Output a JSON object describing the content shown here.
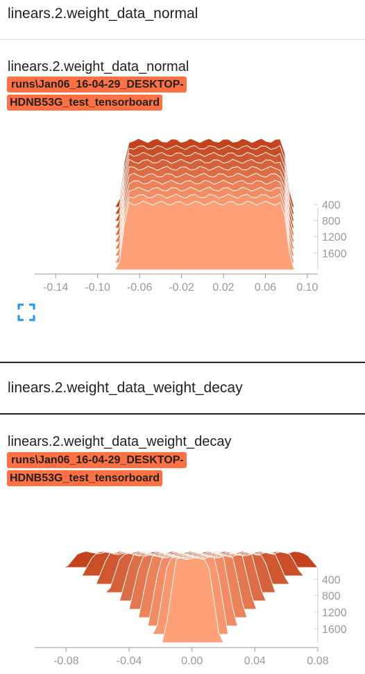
{
  "sections": [
    {
      "header": "linears.2.weight_data_normal",
      "card_title": "linears.2.weight_data_normal",
      "run_label_line1": "runs\\Jan06_16-04-29_DESKTOP-",
      "run_label_line2": "HDNB53G_test_tensorboard",
      "fullscreen_icon": "fullscreen-icon"
    },
    {
      "header": "linears.2.weight_data_weight_decay",
      "card_title": "linears.2.weight_data_weight_decay",
      "run_label_line1": "runs\\Jan06_16-04-29_DESKTOP-",
      "run_label_line2": "HDNB53G_test_tensorboard"
    }
  ],
  "colors": {
    "run_tag": "#ff7043",
    "oldest_step": "#ffa178",
    "newest_step": "#c2431c",
    "axis": "#999999"
  },
  "chart_data": [
    {
      "type": "area",
      "subtype": "offset-histogram",
      "x_tick_labels": [
        "-0.14",
        "-0.10",
        "-0.06",
        "-0.02",
        "0.02",
        "0.06",
        "0.10"
      ],
      "x_ticks": [
        -0.14,
        -0.1,
        -0.06,
        -0.02,
        0.02,
        0.06,
        0.1
      ],
      "xlim": [
        -0.16,
        0.11
      ],
      "step_tick_labels": [
        "400",
        "800",
        "1200",
        "1600"
      ],
      "steps": [
        400,
        800,
        1200,
        1600
      ],
      "series_count": 10,
      "distribution": "uniform",
      "range_per_step": [
        [
          -0.072,
          0.077
        ],
        [
          -0.072,
          0.077
        ],
        [
          -0.072,
          0.077
        ],
        [
          -0.072,
          0.077
        ],
        [
          -0.072,
          0.077
        ],
        [
          -0.072,
          0.077
        ],
        [
          -0.072,
          0.077
        ],
        [
          -0.072,
          0.077
        ],
        [
          -0.072,
          0.077
        ],
        [
          -0.072,
          0.077
        ]
      ]
    },
    {
      "type": "area",
      "subtype": "offset-histogram",
      "x_tick_labels": [
        "-0.08",
        "-0.04",
        "0.00",
        "0.04",
        "0.08"
      ],
      "x_ticks": [
        -0.08,
        -0.04,
        0.0,
        0.04,
        0.08
      ],
      "xlim": [
        -0.1,
        0.08
      ],
      "step_tick_labels": [
        "400",
        "800",
        "1200",
        "1600"
      ],
      "steps": [
        400,
        800,
        1200,
        1600
      ],
      "series_count": 10,
      "distribution": "shrinking",
      "range_per_step": [
        [
          -0.01,
          0.01
        ],
        [
          -0.015,
          0.015
        ],
        [
          -0.02,
          0.02
        ],
        [
          -0.026,
          0.026
        ],
        [
          -0.032,
          0.032
        ],
        [
          -0.038,
          0.038
        ],
        [
          -0.045,
          0.045
        ],
        [
          -0.053,
          0.053
        ],
        [
          -0.062,
          0.062
        ],
        [
          -0.072,
          0.072
        ]
      ]
    }
  ]
}
